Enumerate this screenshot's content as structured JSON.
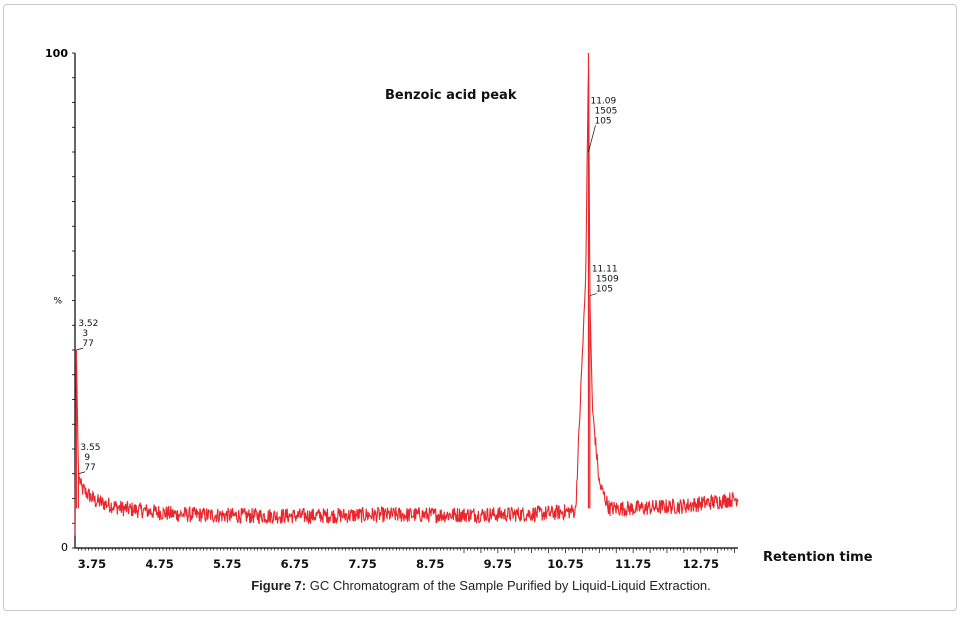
{
  "figure": {
    "caption_label": "Figure 7:",
    "caption_text": " GC Chromatogram of the Sample Purified by Liquid-Liquid Extraction."
  },
  "chart_data": {
    "type": "line",
    "title": "",
    "annotation": "Benzoic acid peak",
    "xlabel": "Retention time",
    "ylabel": "%",
    "xlim": [
      3.5,
      13.3
    ],
    "ylim": [
      0,
      100
    ],
    "y_ticks": [
      "100",
      "%",
      "0"
    ],
    "x_ticks": [
      3.75,
      4.75,
      5.75,
      6.75,
      7.75,
      8.75,
      9.75,
      10.75,
      11.75,
      12.75
    ],
    "x_tick_labels": [
      "3.75",
      "4.75",
      "5.75",
      "6.75",
      "7.75",
      "8.75",
      "9.75",
      "10.75",
      "11.75",
      "12.75"
    ],
    "line_color": "#e8262b",
    "grid": false,
    "peaks": [
      {
        "rt": 3.52,
        "lines": [
          "3.52",
          "3",
          "77"
        ],
        "intensity": 40
      },
      {
        "rt": 3.55,
        "lines": [
          "3.55",
          "9",
          "77"
        ],
        "intensity": 15
      },
      {
        "rt": 11.09,
        "lines": [
          "11.09",
          "1505",
          "105"
        ],
        "intensity": 100
      },
      {
        "rt": 11.11,
        "lines": [
          "11.11",
          "1509",
          "105"
        ],
        "intensity": 51
      }
    ],
    "series": [
      {
        "x": [
          3.5,
          3.52,
          3.55,
          3.6,
          3.8,
          4.2,
          5.0,
          6.0,
          7.0,
          8.0,
          9.0,
          10.0,
          10.5,
          10.9,
          11.05,
          11.09,
          11.11,
          11.15,
          11.25,
          11.4,
          11.75,
          12.5,
          13.3
        ],
        "y": [
          2,
          40,
          15,
          12,
          9.5,
          8,
          6.8,
          6.5,
          6.5,
          6.7,
          6.7,
          6.8,
          7,
          7.5,
          55,
          100,
          51,
          28,
          13,
          8,
          8,
          8.5,
          10
        ]
      }
    ]
  }
}
